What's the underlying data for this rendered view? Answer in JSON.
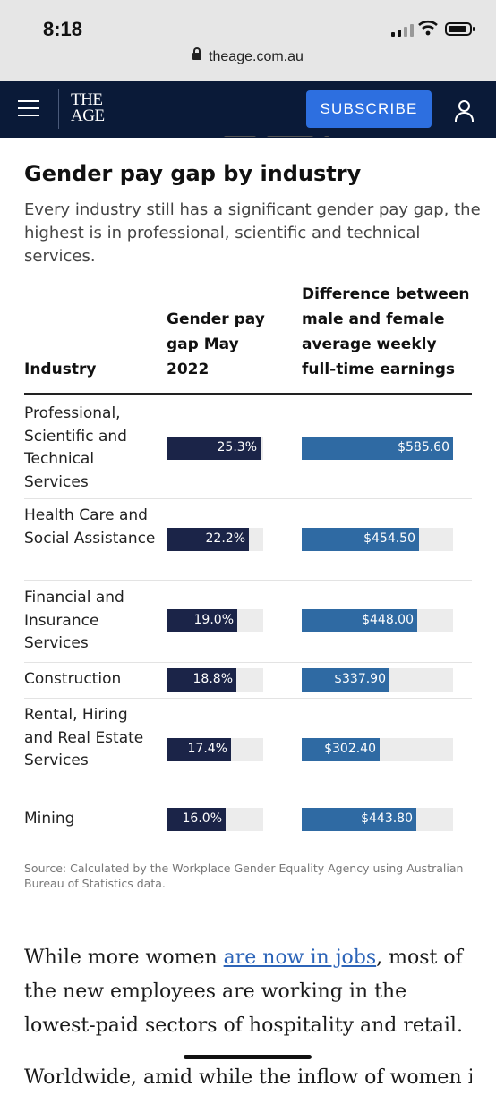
{
  "status": {
    "time": "8:18",
    "url": "theage.com.au"
  },
  "nav": {
    "logo_line1": "THE",
    "logo_line2": "AGE",
    "subscribe_label": "SUBSCRIBE"
  },
  "article": {
    "title": "Gender pay gap by industry",
    "subtitle": "Every industry still has a significant gender pay gap, the highest is in professional, scientific and technical services.",
    "table": {
      "headers": {
        "industry": "Industry",
        "pay_gap": "Gender pay gap May 2022",
        "earnings": "Difference between male and female average weekly full-time earnings"
      },
      "rows": [
        {
          "industry": "Professional, Scientific and Technical Services",
          "pay_gap_label": "25.3%",
          "pay_gap": 25.3,
          "earnings_label": "$585.60",
          "earnings": 585.6
        },
        {
          "industry": "Health Care and Social Assistance",
          "pay_gap_label": "22.2%",
          "pay_gap": 22.2,
          "earnings_label": "$454.50",
          "earnings": 454.5
        },
        {
          "industry": "Financial and Insurance Services",
          "pay_gap_label": "19.0%",
          "pay_gap": 19.0,
          "earnings_label": "$448.00",
          "earnings": 448.0
        },
        {
          "industry": "Construction",
          "pay_gap_label": "18.8%",
          "pay_gap": 18.8,
          "earnings_label": "$337.90",
          "earnings": 337.9
        },
        {
          "industry": "Rental, Hiring and Real Estate Services",
          "pay_gap_label": "17.4%",
          "pay_gap": 17.4,
          "earnings_label": "$302.40",
          "earnings": 302.4
        },
        {
          "industry": "Mining",
          "pay_gap_label": "16.0%",
          "pay_gap": 16.0,
          "earnings_label": "$443.80",
          "earnings": 443.8
        }
      ]
    },
    "source": "Source: Calculated by the Workplace Gender Equality Agency using Australian Bureau of Statistics data.",
    "body_before_link": "While more women ",
    "body_link": "are now in jobs",
    "body_after_link": ", most of the new employees are working in the lowest-paid sectors of hospitality and retail.",
    "next_line": "Worldwide, amid while the inflow of women into"
  },
  "colors": {
    "nav_bg": "#0a1a38",
    "subscribe_bg": "#2d6fe0",
    "pay_gap_bar": "#1b2448",
    "earnings_bar": "#2f6aa3",
    "bar_track": "#ececec",
    "link": "#2c64b8"
  }
}
